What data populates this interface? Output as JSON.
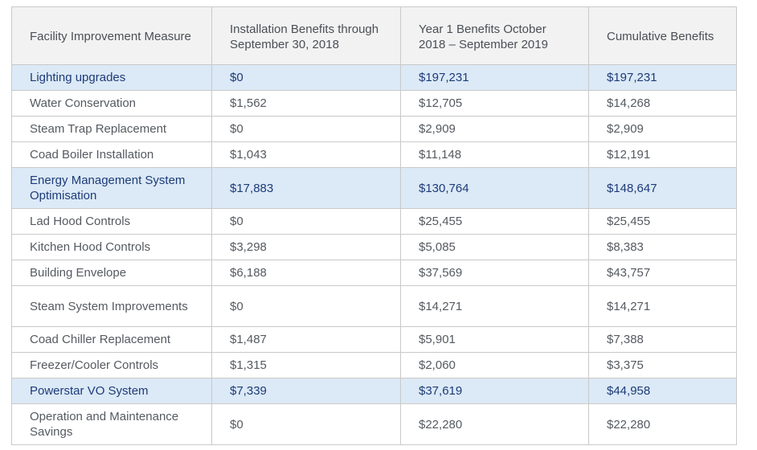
{
  "table": {
    "headers": [
      "Facility Improvement Measure",
      "Installation Benefits through September 30, 2018",
      "Year 1 Benefits October 2018 – September 2019",
      "Cumulative Benefits"
    ],
    "rows": [
      {
        "measure": "Lighting upgrades",
        "installation": "$0",
        "year1": "$197,231",
        "cumulative": "$197,231",
        "highlight": true
      },
      {
        "measure": "Water Conservation",
        "installation": "$1,562",
        "year1": "$12,705",
        "cumulative": "$14,268",
        "highlight": false
      },
      {
        "measure": "Steam Trap Replacement",
        "installation": "$0",
        "year1": "$2,909",
        "cumulative": "$2,909",
        "highlight": false
      },
      {
        "measure": "Coad Boiler Installation",
        "installation": "$1,043",
        "year1": "$11,148",
        "cumulative": "$12,191",
        "highlight": false
      },
      {
        "measure": "Energy Management System Optimisation",
        "installation": "$17,883",
        "year1": "$130,764",
        "cumulative": "$148,647",
        "highlight": true
      },
      {
        "measure": "Lad Hood Controls",
        "installation": "$0",
        "year1": "$25,455",
        "cumulative": "$25,455",
        "highlight": false
      },
      {
        "measure": "Kitchen Hood Controls",
        "installation": "$3,298",
        "year1": "$5,085",
        "cumulative": "$8,383",
        "highlight": false
      },
      {
        "measure": "Building Envelope",
        "installation": "$6,188",
        "year1": "$37,569",
        "cumulative": "$43,757",
        "highlight": false
      },
      {
        "measure": "Steam System Improvements",
        "installation": "$0",
        "year1": "$14,271",
        "cumulative": "$14,271",
        "highlight": false
      },
      {
        "measure": "Coad Chiller Replacement",
        "installation": "$1,487",
        "year1": "$5,901",
        "cumulative": "$7,388",
        "highlight": false
      },
      {
        "measure": "Freezer/Cooler Controls",
        "installation": "$1,315",
        "year1": "$2,060",
        "cumulative": "$3,375",
        "highlight": false
      },
      {
        "measure": "Powerstar VO System",
        "installation": "$7,339",
        "year1": "$37,619",
        "cumulative": "$44,958",
        "highlight": true
      },
      {
        "measure": "Operation and Maintenance Savings",
        "installation": "$0",
        "year1": "$22,280",
        "cumulative": "$22,280",
        "highlight": false
      }
    ]
  },
  "colors": {
    "highlight_bg": "#dce9f6",
    "highlight_text": "#1c3b78",
    "header_bg": "#f2f2f2",
    "border": "#c9c9c9",
    "body_text": "#555a60"
  }
}
